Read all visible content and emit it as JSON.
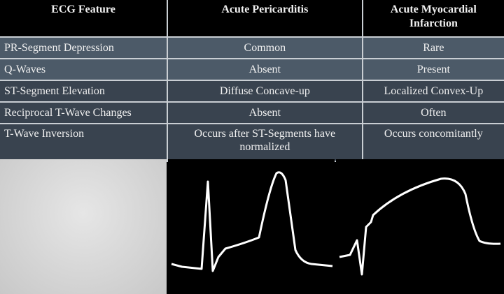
{
  "headers": [
    "ECG Feature",
    "Acute Pericarditis",
    "Acute Myocardial Infarction"
  ],
  "rows": [
    [
      "PR-Segment Depression",
      "Common",
      "Rare"
    ],
    [
      "Q-Waves",
      "Absent",
      "Present"
    ],
    [
      "ST-Segment Elevation",
      "Diffuse Concave-up",
      "Localized Convex-Up"
    ],
    [
      "Reciprocal T-Wave Changes",
      "Absent",
      "Often"
    ],
    [
      "T-Wave Inversion",
      "Occurs after ST-Segments have normalized",
      "Occurs concomitantly"
    ]
  ],
  "colors": {
    "header_bg": "#000000",
    "row_light": "#4c5a68",
    "row_dark": "#39434f",
    "trace": "#ffffff"
  }
}
